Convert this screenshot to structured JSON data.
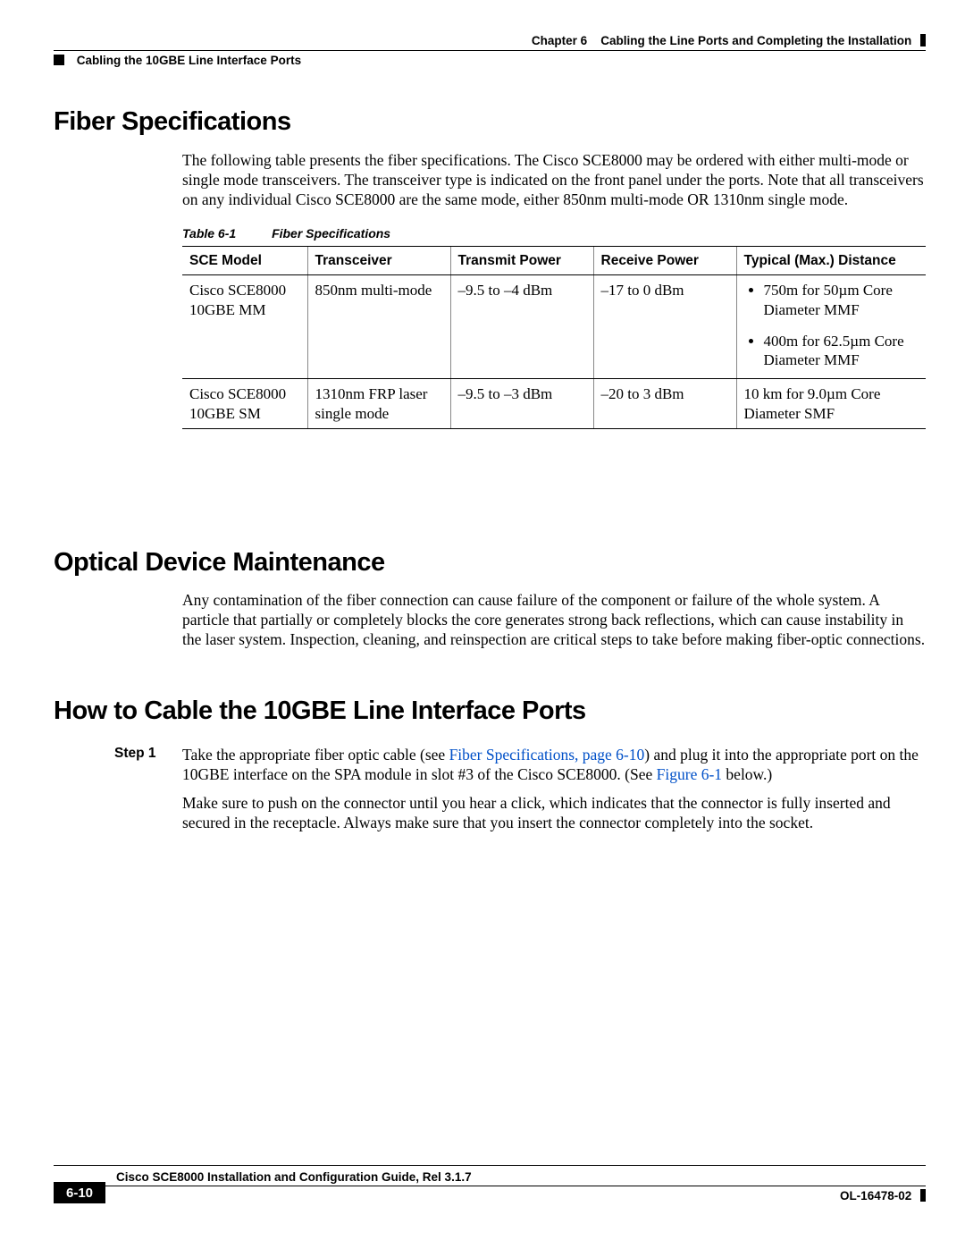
{
  "header": {
    "chapter_label": "Chapter 6",
    "chapter_title": "Cabling the Line Ports and Completing the Installation",
    "section_title": "Cabling the 10GBE Line Interface Ports"
  },
  "sections": {
    "fiber_spec": {
      "heading": "Fiber Specifications",
      "para": "The following table presents the fiber specifications. The Cisco SCE8000 may be ordered with either multi-mode or single mode transceivers. The transceiver type is indicated on the front panel under the ports. Note that all transceivers on any individual Cisco SCE8000 are the same mode, either 850nm multi-mode OR 1310nm single mode.",
      "table_caption_num": "Table 6-1",
      "table_caption_title": "Fiber Specifications",
      "columns": [
        "SCE Model",
        "Transceiver",
        "Transmit Power",
        "Receive Power",
        "Typical (Max.) Distance"
      ],
      "rows": [
        {
          "model": "Cisco SCE8000 10GBE MM",
          "transceiver": "850nm multi-mode",
          "tx": "–9.5 to –4 dBm",
          "rx": "–17 to 0 dBm",
          "dist_list": [
            "750m for 50µm Core Diameter MMF",
            "400m for 62.5µm Core Diameter MMF"
          ]
        },
        {
          "model": "Cisco SCE8000 10GBE SM",
          "transceiver": "1310nm FRP laser single mode",
          "tx": "–9.5 to –3 dBm",
          "rx": "–20 to 3 dBm",
          "dist_text": "10 km for 9.0µm Core Diameter SMF"
        }
      ]
    },
    "optical": {
      "heading": "Optical Device Maintenance",
      "para": "Any contamination of the fiber connection can cause failure of the component or failure of the whole system. A particle that partially or completely blocks the core generates strong back reflections, which can cause instability in the laser system. Inspection, cleaning, and reinspection are critical steps to take before making fiber-optic connections."
    },
    "howto": {
      "heading": "How to Cable the 10GBE Line Interface Ports",
      "step_label": "Step 1",
      "step1_pre": "Take the appropriate fiber optic cable (see ",
      "step1_link1": "Fiber Specifications, page 6-10",
      "step1_mid": ") and plug it into the appropriate port on the 10GBE interface on the SPA module in slot #3 of the Cisco SCE8000. (See ",
      "step1_link2": "Figure 6-1",
      "step1_post": " below.)",
      "step1_p2": "Make sure to push on the connector until you hear a click, which indicates that the connector is fully inserted and secured in the receptacle. Always make sure that you insert the connector completely into the socket."
    }
  },
  "footer": {
    "doc_title": "Cisco SCE8000 Installation and Configuration Guide, Rel 3.1.7",
    "page_num": "6-10",
    "doc_num": "OL-16478-02"
  }
}
